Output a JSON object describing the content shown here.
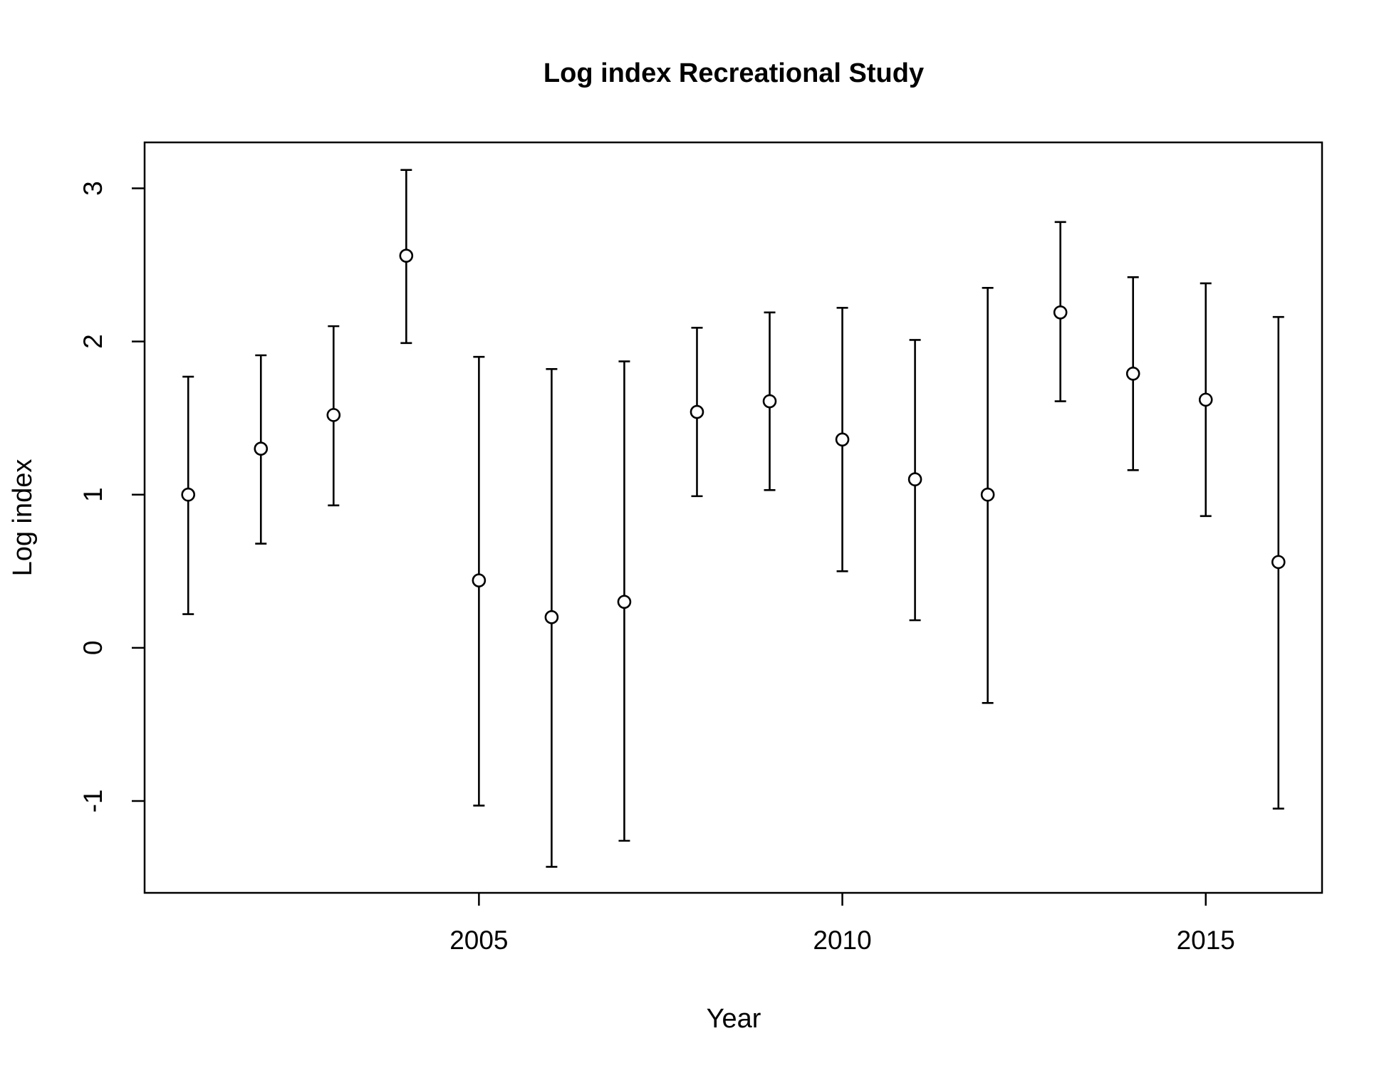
{
  "chart_data": {
    "type": "scatter",
    "title": "Log index Recreational Study",
    "xlabel": "Year",
    "ylabel": "Log index",
    "xlim": [
      2000.4,
      2016.6
    ],
    "ylim": [
      -1.6,
      3.3
    ],
    "x_ticks": [
      2005,
      2010,
      2015
    ],
    "y_ticks": [
      -1,
      0,
      1,
      2,
      3
    ],
    "grid": false,
    "points": [
      {
        "x": 2001,
        "y": 1.0,
        "lower": 0.22,
        "upper": 1.77
      },
      {
        "x": 2002,
        "y": 1.3,
        "lower": 0.68,
        "upper": 1.91
      },
      {
        "x": 2003,
        "y": 1.52,
        "lower": 0.93,
        "upper": 2.1
      },
      {
        "x": 2004,
        "y": 2.56,
        "lower": 1.99,
        "upper": 3.12
      },
      {
        "x": 2005,
        "y": 0.44,
        "lower": -1.03,
        "upper": 1.9
      },
      {
        "x": 2006,
        "y": 0.2,
        "lower": -1.43,
        "upper": 1.82
      },
      {
        "x": 2007,
        "y": 0.3,
        "lower": -1.26,
        "upper": 1.87
      },
      {
        "x": 2008,
        "y": 1.54,
        "lower": 0.99,
        "upper": 2.09
      },
      {
        "x": 2009,
        "y": 1.61,
        "lower": 1.03,
        "upper": 2.19
      },
      {
        "x": 2010,
        "y": 1.36,
        "lower": 0.5,
        "upper": 2.22
      },
      {
        "x": 2011,
        "y": 1.1,
        "lower": 0.18,
        "upper": 2.01
      },
      {
        "x": 2012,
        "y": 1.0,
        "lower": -0.36,
        "upper": 2.35
      },
      {
        "x": 2013,
        "y": 2.19,
        "lower": 1.61,
        "upper": 2.78
      },
      {
        "x": 2014,
        "y": 1.79,
        "lower": 1.16,
        "upper": 2.42
      },
      {
        "x": 2015,
        "y": 1.62,
        "lower": 0.86,
        "upper": 2.38
      },
      {
        "x": 2016,
        "y": 0.56,
        "lower": -1.05,
        "upper": 2.16
      }
    ]
  }
}
